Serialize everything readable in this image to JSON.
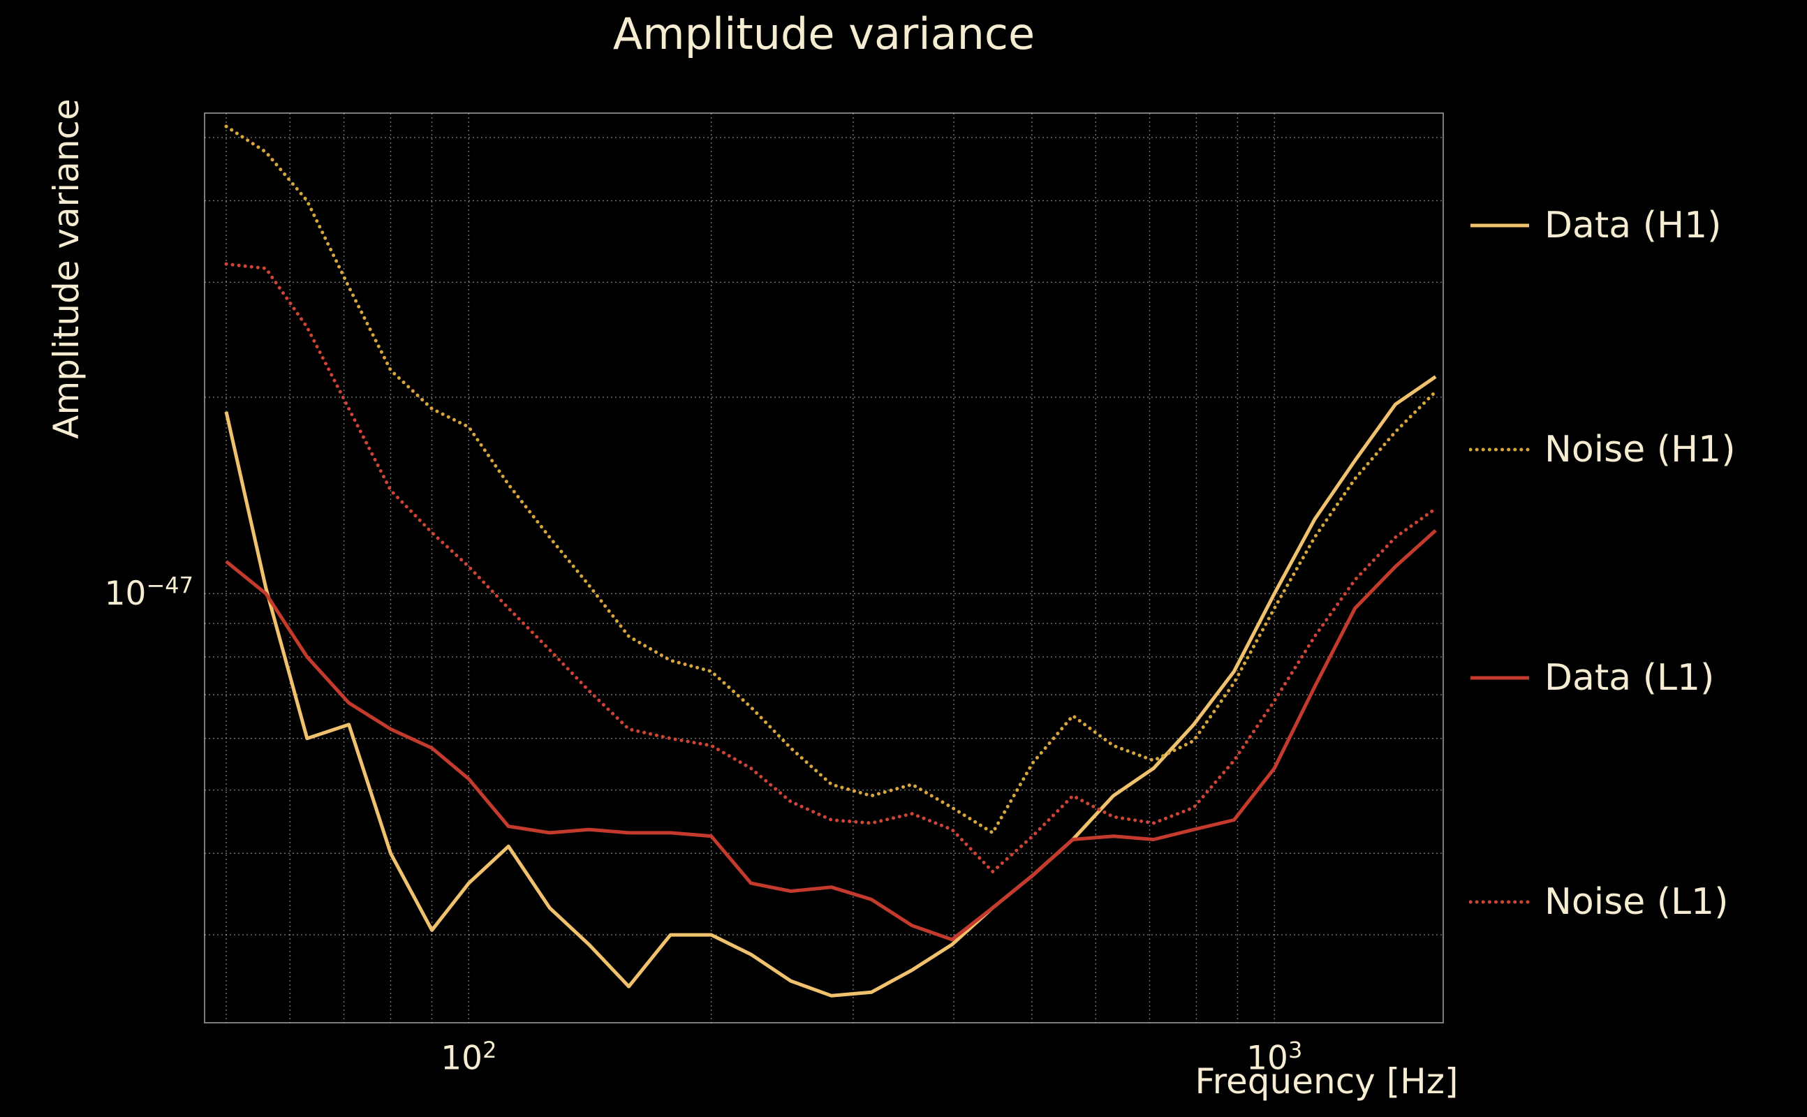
{
  "chart_data": {
    "type": "line",
    "title": "Amplitude variance",
    "xlabel": "Frequency [Hz]",
    "ylabel": "Amplitude variance",
    "xscale": "log",
    "yscale": "log",
    "xlim": [
      47,
      1620
    ],
    "ylim": [
      2.2e-48,
      5.45e-47
    ],
    "grid": true,
    "legend_position": "right-outside",
    "background_color": "#000000",
    "text_color": "#f6ecd2",
    "grid_color": "#e9e9e9",
    "units_note": "series values are amplitude variance in units of 1e-48",
    "x": [
      50,
      56,
      63,
      71,
      80,
      90,
      100,
      112,
      126,
      141,
      158,
      178,
      200,
      224,
      251,
      282,
      316,
      355,
      398,
      447,
      501,
      562,
      631,
      708,
      794,
      891,
      1000,
      1122,
      1259,
      1413,
      1585
    ],
    "x_ticks": [
      {
        "v": 100,
        "base": "10",
        "exp": "2"
      },
      {
        "v": 1000,
        "base": "10",
        "exp": "3"
      }
    ],
    "y_ticks": [
      {
        "v": 1e-47,
        "base": "10",
        "exp": "−47"
      }
    ],
    "series": [
      {
        "id": "data-h1",
        "name": "Data (H1)",
        "color": "#f1c26e",
        "style": "solid",
        "values_1e48": [
          19.0,
          10.2,
          6.0,
          6.3,
          4.0,
          3.05,
          3.6,
          4.1,
          3.3,
          2.9,
          2.5,
          3.0,
          3.0,
          2.8,
          2.55,
          2.42,
          2.45,
          2.65,
          2.9,
          3.3,
          3.7,
          4.2,
          4.9,
          5.4,
          6.3,
          7.6,
          10.0,
          13.0,
          16.0,
          19.5,
          21.5
        ]
      },
      {
        "id": "noise-h1",
        "name": "Noise (H1)",
        "color": "#d6a63f",
        "style": "dotted",
        "values_1e48": [
          52.0,
          47.5,
          40.0,
          29.5,
          22.0,
          19.2,
          18.0,
          14.7,
          12.2,
          10.3,
          8.6,
          7.9,
          7.6,
          6.7,
          5.8,
          5.1,
          4.9,
          5.1,
          4.7,
          4.3,
          5.5,
          6.5,
          5.85,
          5.55,
          5.95,
          7.3,
          9.5,
          12.2,
          15.0,
          17.7,
          20.4
        ]
      },
      {
        "id": "data-l1",
        "name": "Data (L1)",
        "color": "#c43b2e",
        "style": "solid",
        "values_1e48": [
          11.2,
          10.0,
          8.0,
          6.8,
          6.2,
          5.8,
          5.2,
          4.4,
          4.3,
          4.35,
          4.3,
          4.3,
          4.25,
          3.6,
          3.5,
          3.55,
          3.4,
          3.1,
          2.95,
          3.3,
          3.7,
          4.2,
          4.25,
          4.2,
          4.35,
          4.5,
          5.4,
          7.2,
          9.5,
          11.0,
          12.5
        ]
      },
      {
        "id": "noise-l1",
        "name": "Noise (L1)",
        "color": "#cd4536",
        "style": "dotted",
        "values_1e48": [
          32.0,
          31.5,
          25.6,
          19.2,
          14.4,
          12.4,
          11.0,
          9.5,
          8.2,
          7.1,
          6.2,
          6.0,
          5.85,
          5.4,
          4.8,
          4.5,
          4.45,
          4.6,
          4.35,
          3.75,
          4.25,
          4.9,
          4.55,
          4.45,
          4.7,
          5.55,
          6.85,
          8.6,
          10.5,
          12.2,
          13.5
        ]
      }
    ]
  }
}
